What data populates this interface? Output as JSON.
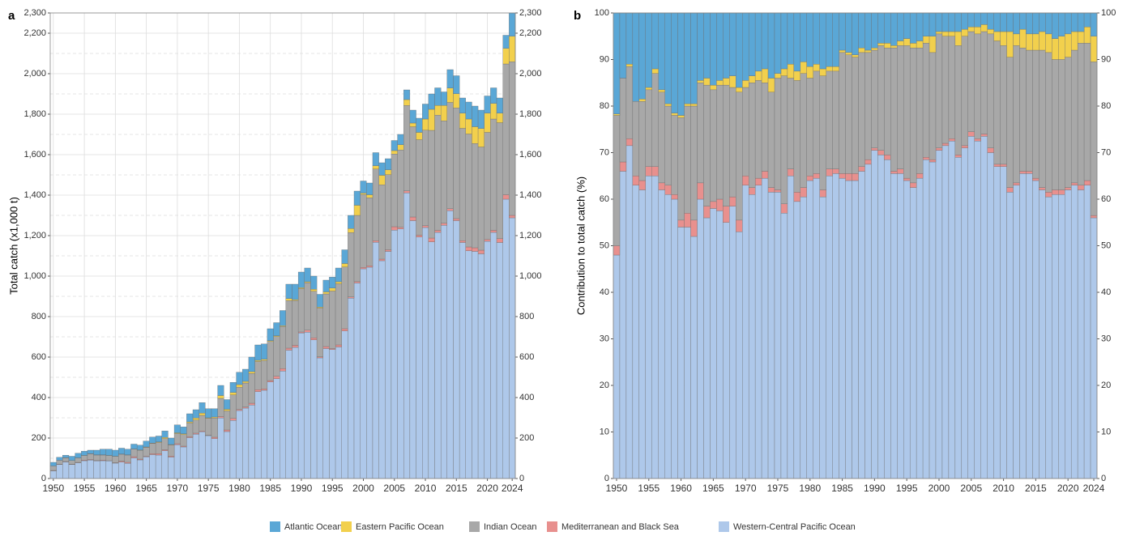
{
  "chart_data": [
    {
      "type": "bar",
      "stacked": true,
      "panel_label": "a",
      "y_label": "Total catch (x1,000 t)",
      "grid": true,
      "x": [
        1950,
        1951,
        1952,
        1953,
        1954,
        1955,
        1956,
        1957,
        1958,
        1959,
        1960,
        1961,
        1962,
        1963,
        1964,
        1965,
        1966,
        1967,
        1968,
        1969,
        1970,
        1971,
        1972,
        1973,
        1974,
        1975,
        1976,
        1977,
        1978,
        1979,
        1980,
        1981,
        1982,
        1983,
        1984,
        1985,
        1986,
        1987,
        1988,
        1989,
        1990,
        1991,
        1992,
        1993,
        1994,
        1995,
        1996,
        1997,
        1998,
        1999,
        2000,
        2001,
        2002,
        2003,
        2004,
        2005,
        2006,
        2007,
        2008,
        2009,
        2010,
        2011,
        2012,
        2013,
        2014,
        2015,
        2016,
        2017,
        2018,
        2019,
        2020,
        2021,
        2022,
        2023,
        2024
      ],
      "xticks": [
        1950,
        1955,
        1960,
        1965,
        1970,
        1975,
        1980,
        1985,
        1990,
        1995,
        2000,
        2005,
        2010,
        2015,
        2020,
        2024
      ],
      "ylim": [
        0,
        2300
      ],
      "yticks": [
        0,
        200,
        400,
        600,
        800,
        {
          "value": 1000,
          "label": "1,000"
        },
        {
          "value": 1200,
          "label": "1,200"
        },
        {
          "value": 1400,
          "label": "1,400"
        },
        {
          "value": 1600,
          "label": "1,600"
        },
        {
          "value": 1800,
          "label": "1,800"
        },
        {
          "value": 2000,
          "label": "2,000"
        },
        {
          "value": 2200,
          "label": "2,200"
        },
        {
          "value": 2300,
          "label": "2,300"
        }
      ],
      "minor_yticks": [
        100,
        300,
        500,
        700,
        900,
        1100,
        1300,
        1500,
        1700,
        1900,
        2100
      ],
      "series": [
        {
          "name": "Western-Central Pacific Ocean",
          "color": "#aec8ea",
          "values": [
            38,
            69,
            82,
            69,
            78,
            88,
            91,
            87,
            88,
            87,
            76,
            81,
            75,
            102,
            92,
            107,
            118,
            116,
            137,
            106,
            167,
            156,
            202,
            219,
            231,
            212,
            197,
            299,
            232,
            287,
            336,
            348,
            363,
            429,
            436,
            477,
            493,
            531,
            634,
            648,
            719,
            723,
            685,
            596,
            642,
            637,
            650,
            729,
            891,
            966,
            1036,
            1044,
            1167,
            1076,
            1122,
            1227,
            1233,
            1411,
            1274,
            1193,
            1240,
            1169,
            1216,
            1251,
            1323,
            1274,
            1166,
            1125,
            1122,
            1110,
            1172,
            1216,
            1166,
            1380,
            1288
          ]
        },
        {
          "name": "Mediterranean and Black Sea",
          "color": "#e8908e",
          "values": [
            2,
            2,
            2,
            2,
            2,
            3,
            3,
            2,
            3,
            1,
            2,
            5,
            5,
            6,
            4,
            3,
            5,
            7,
            5,
            5,
            5,
            4,
            5,
            5,
            4,
            2,
            7,
            7,
            8,
            10,
            5,
            5,
            9,
            10,
            7,
            7,
            12,
            12,
            10,
            10,
            5,
            10,
            10,
            5,
            10,
            5,
            10,
            11,
            6,
            7,
            7,
            7,
            8,
            8,
            8,
            17,
            8,
            10,
            18,
            9,
            9,
            19,
            10,
            10,
            10,
            10,
            9,
            19,
            18,
            18,
            9,
            10,
            19,
            22,
            12
          ]
        },
        {
          "name": "Indian Ocean",
          "color": "#a8a8a8",
          "values": [
            22,
            19,
            18,
            18,
            21,
            22,
            28,
            27,
            25,
            25,
            31,
            34,
            36,
            37,
            43,
            44,
            50,
            55,
            55,
            55,
            50,
            57,
            67,
            65,
            77,
            83,
            95,
            90,
            94,
            116,
            110,
            119,
            147,
            139,
            140,
            193,
            196,
            208,
            235,
            221,
            214,
            234,
            230,
            241,
            260,
            284,
            302,
            305,
            318,
            327,
            360,
            336,
            354,
            367,
            371,
            359,
            382,
            422,
            446,
            472,
            472,
            532,
            569,
            506,
            525,
            547,
            555,
            558,
            515,
            510,
            529,
            550,
            573,
            646,
            759
          ]
        },
        {
          "name": "Eastern Pacific Ocean",
          "color": "#f2d04d",
          "values": [
            0,
            0,
            1,
            0,
            1,
            1,
            1,
            1,
            1,
            1,
            1,
            1,
            1,
            1,
            2,
            2,
            2,
            3,
            6,
            2,
            4,
            4,
            6,
            10,
            11,
            3,
            5,
            14,
            8,
            12,
            13,
            8,
            9,
            6,
            6,
            4,
            4,
            4,
            10,
            5,
            5,
            5,
            10,
            5,
            10,
            15,
            10,
            17,
            20,
            50,
            7,
            15,
            16,
            47,
            24,
            17,
            26,
            29,
            18,
            36,
            55,
            104,
            48,
            76,
            71,
            70,
            75,
            74,
            83,
            91,
            95,
            77,
            47,
            77,
            126
          ]
        },
        {
          "name": "Atlantic Ocean",
          "color": "#5aa7d6",
          "values": [
            18,
            15,
            12,
            21,
            23,
            21,
            17,
            23,
            28,
            31,
            30,
            29,
            28,
            24,
            24,
            29,
            30,
            29,
            32,
            32,
            39,
            34,
            40,
            41,
            52,
            45,
            41,
            50,
            48,
            50,
            61,
            60,
            72,
            76,
            76,
            59,
            65,
            75,
            71,
            76,
            77,
            68,
            65,
            63,
            58,
            54,
            68,
            68,
            65,
            70,
            60,
            58,
            65,
            62,
            55,
            50,
            51,
            48,
            64,
            70,
            74,
            76,
            87,
            67,
            91,
            89,
            75,
            84,
            102,
            91,
            85,
            77,
            75,
            65,
            115
          ]
        }
      ]
    },
    {
      "type": "bar",
      "stacked": true,
      "panel_label": "b",
      "y_label": "Contribution to total catch (%)",
      "grid": true,
      "x": [
        1950,
        1951,
        1952,
        1953,
        1954,
        1955,
        1956,
        1957,
        1958,
        1959,
        1960,
        1961,
        1962,
        1963,
        1964,
        1965,
        1966,
        1967,
        1968,
        1969,
        1970,
        1971,
        1972,
        1973,
        1974,
        1975,
        1976,
        1977,
        1978,
        1979,
        1980,
        1981,
        1982,
        1983,
        1984,
        1985,
        1986,
        1987,
        1988,
        1989,
        1990,
        1991,
        1992,
        1993,
        1994,
        1995,
        1996,
        1997,
        1998,
        1999,
        2000,
        2001,
        2002,
        2003,
        2004,
        2005,
        2006,
        2007,
        2008,
        2009,
        2010,
        2011,
        2012,
        2013,
        2014,
        2015,
        2016,
        2017,
        2018,
        2019,
        2020,
        2021,
        2022,
        2023,
        2024
      ],
      "xticks": [
        1950,
        1955,
        1960,
        1965,
        1970,
        1975,
        1980,
        1985,
        1990,
        1995,
        2000,
        2005,
        2010,
        2015,
        2020,
        2024
      ],
      "ylim": [
        0,
        100
      ],
      "yticks": [
        0,
        10,
        20,
        30,
        40,
        50,
        60,
        70,
        80,
        90,
        100
      ],
      "series": [
        {
          "values": [
            48,
            66,
            71.5,
            63,
            62,
            65,
            65,
            62,
            61,
            60,
            54,
            54,
            52,
            60,
            56,
            58,
            57.5,
            55,
            58.5,
            53,
            63,
            61,
            63,
            64.5,
            61.5,
            61.5,
            57,
            65,
            59.5,
            60.5,
            64,
            64.5,
            60.5,
            65,
            65.5,
            64.5,
            64,
            64,
            66,
            67.5,
            70.5,
            69.5,
            68.5,
            65.5,
            65.5,
            64,
            62.5,
            64.5,
            68.5,
            68,
            70.5,
            71.5,
            72.5,
            69,
            71,
            73.5,
            72.5,
            73.5,
            70,
            67,
            67,
            61.5,
            63,
            65.5,
            65.5,
            64,
            62,
            60.5,
            61,
            61,
            62,
            63,
            62,
            63,
            56
          ]
        },
        {
          "values": [
            2,
            2,
            1.5,
            2,
            2,
            2,
            2,
            1.5,
            2,
            1,
            1.5,
            3,
            3.5,
            3.5,
            2.5,
            1.5,
            2.5,
            3.5,
            2,
            2.5,
            2,
            1.5,
            1.5,
            1.5,
            1,
            0.5,
            2,
            1.5,
            2,
            2,
            1,
            1,
            1.5,
            1.5,
            1,
            1,
            1.5,
            1.5,
            1,
            1,
            0.5,
            1,
            1,
            0.5,
            1,
            0.5,
            1,
            1,
            0.5,
            0.5,
            0.5,
            0.5,
            0.5,
            0.5,
            0.5,
            1,
            0.5,
            0.5,
            1,
            0.5,
            0.5,
            1,
            0.5,
            0.5,
            0.5,
            0.5,
            0.5,
            1,
            1,
            1,
            0.5,
            0.5,
            1,
            1,
            0.5
          ]
        },
        {
          "values": [
            28,
            18,
            15.5,
            16,
            17,
            16.5,
            20,
            19.5,
            17,
            17,
            22,
            23,
            24.5,
            21.5,
            26,
            24,
            24.5,
            26,
            23.5,
            27.5,
            19,
            22.5,
            21,
            19,
            20.5,
            24,
            27.5,
            19.5,
            24,
            24.5,
            21,
            22,
            24.5,
            21,
            21,
            26,
            25.5,
            25,
            24.5,
            23,
            21,
            22.5,
            23,
            26.5,
            26.5,
            28.5,
            29,
            27,
            24.5,
            23,
            24.5,
            23,
            22,
            23.5,
            23.5,
            21.5,
            22.5,
            22,
            24.5,
            26.5,
            25.5,
            28,
            29.5,
            26.5,
            26,
            27.5,
            29.5,
            30,
            28,
            28,
            28,
            28.5,
            30.5,
            29.5,
            33
          ]
        },
        {
          "values": [
            0.3,
            0,
            0.5,
            0,
            0.5,
            0.5,
            1,
            0.5,
            0.5,
            0.5,
            0.5,
            0.5,
            0.5,
            0.5,
            1.5,
            1,
            1,
            1.5,
            2.5,
            1,
            1.5,
            1.5,
            2,
            3,
            3,
            1,
            1.5,
            3,
            2,
            2.5,
            2.5,
            1.5,
            1.5,
            1,
            1,
            0.5,
            0.5,
            0.5,
            1,
            0.5,
            0.5,
            0.5,
            1,
            0.5,
            1,
            1.5,
            1,
            1.5,
            1.5,
            3.5,
            0.5,
            1,
            1,
            3,
            1.5,
            1,
            1.5,
            1.5,
            1,
            2,
            3,
            5.5,
            2.5,
            4,
            3.5,
            3.5,
            4,
            4,
            4.5,
            5,
            5,
            4,
            2.5,
            3.5,
            5.5
          ]
        },
        {
          "values": [
            21.7,
            14,
            11,
            19,
            18.5,
            16,
            12,
            16.5,
            19.5,
            21.5,
            22,
            19.5,
            19.5,
            14.5,
            14,
            15.5,
            14.5,
            14,
            13.5,
            16,
            14.5,
            13.5,
            12.5,
            12,
            14,
            13,
            12,
            11,
            12.5,
            10.5,
            11.5,
            11,
            12,
            11.5,
            11.5,
            8,
            8.5,
            9,
            7.5,
            8,
            7.5,
            6.5,
            6.5,
            7,
            6,
            5.5,
            6.5,
            6,
            5,
            5,
            4,
            4,
            4,
            4,
            3.5,
            3,
            3,
            2.5,
            3.5,
            4,
            4,
            4,
            4.5,
            3.5,
            4.5,
            4.5,
            4,
            4.5,
            5.5,
            5,
            4.5,
            4,
            4,
            3,
            5
          ]
        }
      ]
    }
  ]
}
